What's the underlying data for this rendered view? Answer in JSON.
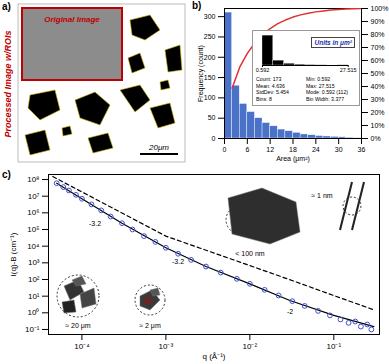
{
  "chart_data": [
    {
      "type": "image",
      "panel": "a)",
      "title": "Processed Image w/ROIs",
      "annotations": [
        "Original Image",
        "20μm"
      ]
    },
    {
      "type": "histogram",
      "panel": "b)",
      "xlabel": "Area (μm²)",
      "ylabel": "Frequency (count)",
      "color": "#4a72c8",
      "bins": [
        0,
        2,
        4,
        6,
        8,
        10,
        12,
        14,
        16,
        18,
        20,
        22,
        24,
        26,
        28,
        30,
        32,
        34,
        36
      ],
      "values": [
        310,
        130,
        85,
        65,
        50,
        38,
        30,
        22,
        18,
        14,
        10,
        8,
        6,
        5,
        4,
        3,
        2,
        1
      ],
      "xlim": [
        0,
        36
      ],
      "xticks": [
        0,
        6,
        12,
        18,
        24,
        30,
        36
      ],
      "ylim": [
        0,
        320
      ],
      "yticks": [
        0,
        50,
        100,
        150,
        200,
        250,
        300
      ],
      "y2lim": [
        0,
        100
      ],
      "y2ticks": [
        {
          "value": 0,
          "label": "0%"
        },
        {
          "value": 10,
          "label": "10%"
        },
        {
          "value": 20,
          "label": "20%"
        },
        {
          "value": 30,
          "label": "30%"
        },
        {
          "value": 40,
          "label": "40%"
        },
        {
          "value": 50,
          "label": "50%"
        },
        {
          "value": 60,
          "label": "60%"
        },
        {
          "value": 70,
          "label": "70%"
        },
        {
          "value": 80,
          "label": "80%"
        },
        {
          "value": 90,
          "label": "90%"
        },
        {
          "value": 100,
          "label": "100%"
        }
      ],
      "series": [
        {
          "type": "line",
          "axis": "y2",
          "color": "#e03030",
          "x": [
            2,
            4,
            6,
            8,
            10,
            12,
            14,
            16,
            18,
            20,
            22,
            24,
            26,
            28,
            30,
            32,
            34,
            36
          ],
          "values": [
            38.7,
            54.9,
            65.5,
            73.7,
            79.9,
            84.6,
            88.4,
            91.1,
            93.4,
            95.1,
            96.4,
            97.4,
            98.1,
            98.8,
            99.3,
            99.6,
            99.9,
            100
          ]
        }
      ],
      "inset": {
        "type": "histogram",
        "title": "Units in μm²",
        "color": "#000000",
        "tick_labels": "x",
        "bins": [
          0.592,
          3.969,
          7.346,
          10.723,
          14.1,
          17.477,
          20.854,
          24.231,
          27.608
        ],
        "values": [
          135,
          22,
          8,
          4,
          2,
          1,
          0,
          1
        ],
        "xlim": [
          0.592,
          27.608
        ],
        "xticks": [
          0.592,
          27.515
        ],
        "ylim": [
          0,
          140
        ],
        "annotations": [
          "Count: 173",
          "Min: 0.592",
          "Mean: 4.636",
          "Max: 27.515",
          "StdDev: 5.454",
          "Mode: 0.592 (112)",
          "Bins: 8",
          "Bin Width: 3.377"
        ]
      }
    },
    {
      "type": "scatter",
      "panel": "c)",
      "log": true,
      "marker": "circle",
      "color": "#4050d0",
      "xlabel": "q (Å⁻¹)",
      "ylabel": "I(q)-B (cm⁻¹)",
      "x": [
        5e-05,
        6e-05,
        7e-05,
        8.5e-05,
        0.0001,
        0.00013,
        0.00017,
        0.00022,
        0.0003,
        0.0004,
        0.00055,
        0.00075,
        0.001,
        0.0014,
        0.002,
        0.003,
        0.0045,
        0.007,
        0.01,
        0.015,
        0.022,
        0.032,
        0.045,
        0.065,
        0.09,
        0.12,
        0.15,
        0.18,
        0.21,
        0.25,
        0.28
      ],
      "values": [
        60000000.0,
        35000000.0,
        22000000.0,
        12000000.0,
        7000000.0,
        3200000.0,
        1400000.0,
        600000.0,
        240000.0,
        100000.0,
        40000.0,
        18000.0,
        8000.0,
        3500.0,
        1500.0,
        600,
        260,
        110,
        55,
        24,
        11,
        5,
        2.6,
        1.3,
        0.7,
        0.4,
        0.25,
        0.3,
        0.15,
        0.2,
        0.1
      ],
      "series": [
        {
          "type": "line",
          "line_style": "solid",
          "color": "#000000",
          "x": [
            5e-05,
            0.0001,
            0.0003,
            0.001,
            0.003,
            0.01,
            0.03,
            0.1,
            0.3
          ],
          "values": [
            60000000.0,
            7000000.0,
            240000.0,
            8000.0,
            600,
            55,
            5.5,
            0.7,
            0.15
          ]
        },
        {
          "type": "line",
          "line_style": "dashed",
          "color": "#000000",
          "x": [
            4.5e-05,
            0.001,
            0.02,
            0.3
          ],
          "values": [
            150000000.0,
            40000.0,
            200,
            1.5
          ]
        }
      ],
      "xlim": [
        4e-05,
        0.35
      ],
      "ylim": [
        0.05,
        200000000.0
      ],
      "xticks": [
        {
          "value": 0.0001,
          "label": "10⁻⁴"
        },
        {
          "value": 0.001,
          "label": "10⁻³"
        },
        {
          "value": 0.01,
          "label": "10⁻²"
        },
        {
          "value": 0.1,
          "label": "10⁻¹"
        }
      ],
      "yticks": [
        {
          "value": 0.1,
          "label": "10⁻¹"
        },
        {
          "value": 1,
          "label": "10⁰"
        },
        {
          "value": 10,
          "label": "10¹"
        },
        {
          "value": 100,
          "label": "10²"
        },
        {
          "value": 1000,
          "label": "10³"
        },
        {
          "value": 10000,
          "label": "10⁴"
        },
        {
          "value": 100000,
          "label": "10⁵"
        },
        {
          "value": 1000000,
          "label": "10⁶"
        },
        {
          "value": 10000000,
          "label": "10⁷"
        },
        {
          "value": 100000000,
          "label": "10⁸"
        }
      ],
      "annotations": [
        "-3.2",
        "-3.2",
        "-2",
        "≈ 20 μm",
        "≈ 2 μm",
        "< 100 nm",
        "≈ 1 nm"
      ]
    }
  ]
}
